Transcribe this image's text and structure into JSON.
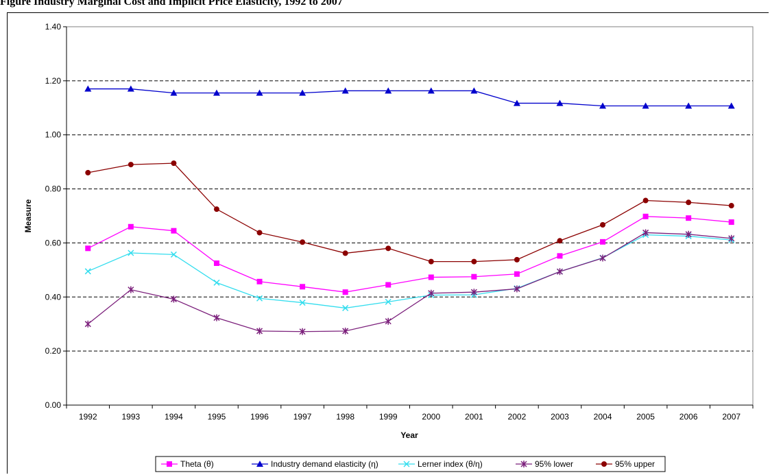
{
  "caption": "Figure    Industry Marginal Cost and Implicit Price Elasticity, 1992 to 2007",
  "chart_data": {
    "type": "line",
    "categories": [
      "1992",
      "1993",
      "1994",
      "1995",
      "1996",
      "1997",
      "1998",
      "1999",
      "2000",
      "2001",
      "2002",
      "2003",
      "2004",
      "2005",
      "2006",
      "2007"
    ],
    "xlabel": "Year",
    "ylabel": "Measure",
    "ylim": [
      0,
      1.4
    ],
    "yticks": [
      "0.00",
      "0.20",
      "0.40",
      "0.60",
      "0.80",
      "1.00",
      "1.20",
      "1.40"
    ],
    "grid": "horizontal dashed",
    "legend_position": "bottom",
    "series": [
      {
        "name": "Theta (θ)",
        "color": "#FF00FF",
        "marker": "square",
        "values": [
          0.58,
          0.66,
          0.645,
          0.525,
          0.457,
          0.438,
          0.418,
          0.445,
          0.473,
          0.475,
          0.485,
          0.552,
          0.604,
          0.698,
          0.692,
          0.677
        ]
      },
      {
        "name": "Industry demand elasticity (η)",
        "color": "#0000CC",
        "marker": "triangle",
        "values": [
          1.17,
          1.17,
          1.155,
          1.155,
          1.155,
          1.155,
          1.163,
          1.163,
          1.163,
          1.163,
          1.117,
          1.117,
          1.107,
          1.107,
          1.107,
          1.107
        ]
      },
      {
        "name": "Lerner index (θ/η)",
        "color": "#33DDEE",
        "marker": "x",
        "values": [
          0.495,
          0.563,
          0.557,
          0.453,
          0.395,
          0.379,
          0.359,
          0.382,
          0.407,
          0.408,
          0.432,
          0.494,
          0.545,
          0.63,
          0.625,
          0.611
        ]
      },
      {
        "name": "95% lower",
        "color": "#7B1F7B",
        "marker": "star",
        "values": [
          0.3,
          0.427,
          0.392,
          0.323,
          0.274,
          0.272,
          0.274,
          0.31,
          0.414,
          0.418,
          0.43,
          0.494,
          0.544,
          0.638,
          0.632,
          0.617
        ]
      },
      {
        "name": "95% upper",
        "color": "#8B0000",
        "marker": "circle",
        "values": [
          0.86,
          0.89,
          0.895,
          0.725,
          0.638,
          0.603,
          0.562,
          0.58,
          0.531,
          0.531,
          0.538,
          0.608,
          0.667,
          0.757,
          0.75,
          0.738
        ]
      }
    ]
  }
}
